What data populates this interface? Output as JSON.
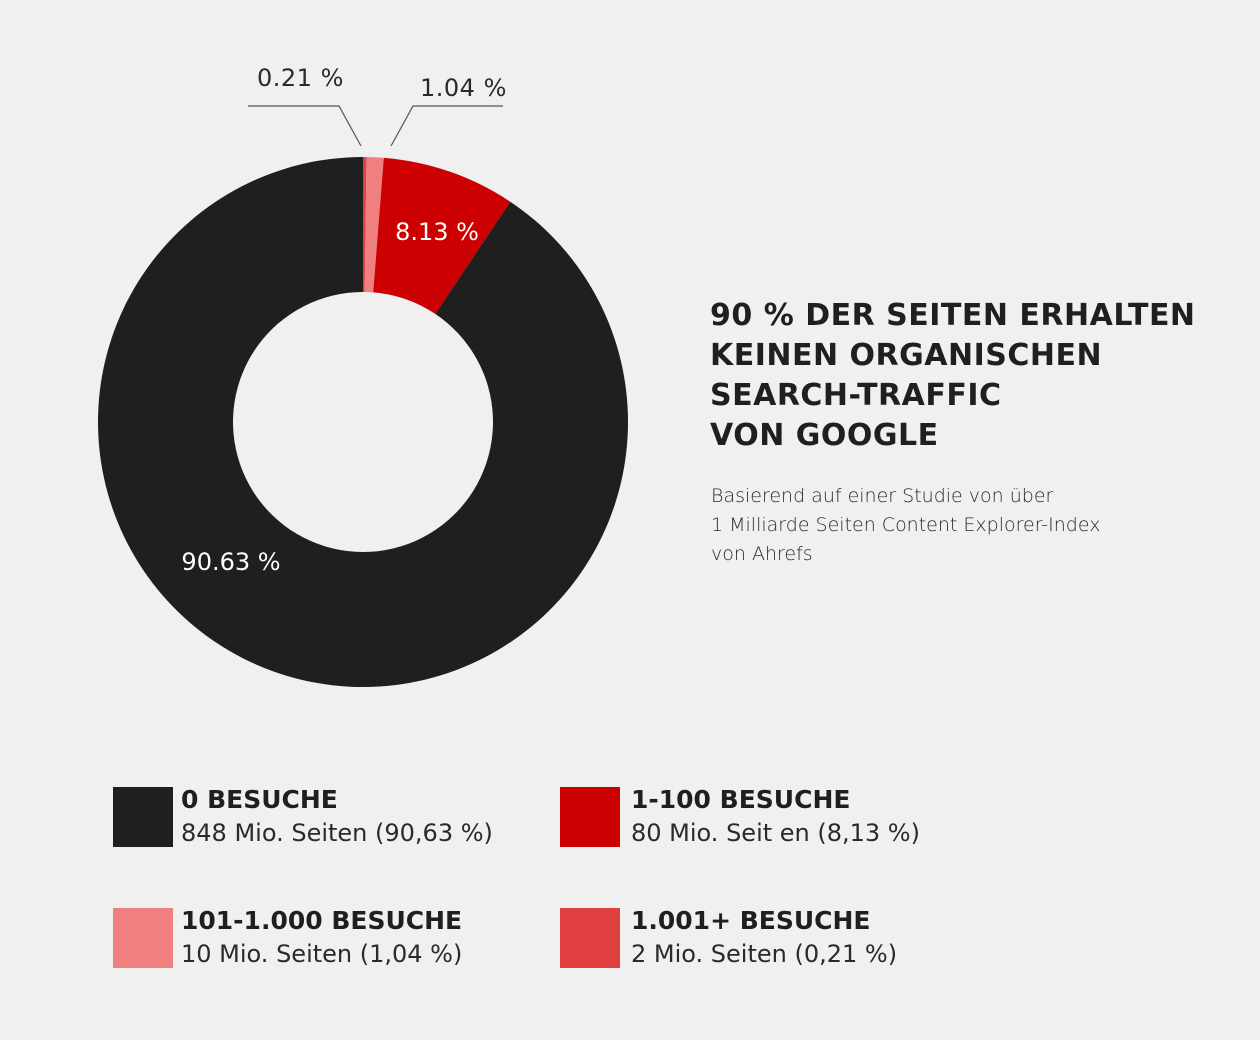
{
  "chart_data": {
    "type": "pie",
    "variant": "donut",
    "title": "90 % DER SEITEN ERHALTEN KEINEN ORGANISCHEN SEARCH-TRAFFIC VON GOOGLE",
    "subtitle": "Basierend auf einer Studie von über 1 Milliarde Seiten Content Explorer-Index von Ahrefs",
    "start_angle_deg": 0,
    "direction": "clockwise",
    "slices": [
      {
        "key": "1001plus",
        "label": "1.001+ BESUCHE",
        "value": 0.21,
        "display": "0.21 %",
        "color": "#e04040",
        "label_position": "outside-left"
      },
      {
        "key": "101to1000",
        "label": "101-1.000 BESUCHE",
        "value": 1.04,
        "display": "1.04 %",
        "color": "#f08080",
        "label_position": "outside-right"
      },
      {
        "key": "1to100",
        "label": "1-100 BESUCHE",
        "value": 8.13,
        "display": "8.13 %",
        "color": "#cc0000",
        "label_position": "inside"
      },
      {
        "key": "zero",
        "label": "0 BESUCHE",
        "value": 90.63,
        "display": "90.63 %",
        "color": "#1f1f1f",
        "label_position": "inside"
      }
    ],
    "legend": [
      {
        "key": "zero",
        "title": "0 BESUCHE",
        "desc": "848 Mio. Seiten (90,63 %)",
        "pages_millions": 848,
        "percent": 90.63,
        "color": "#1f1f1f"
      },
      {
        "key": "1to100",
        "title": "1-100 BESUCHE",
        "desc": "80 Mio. Seit  en (8,13 %)",
        "pages_millions": 80,
        "percent": 8.13,
        "color": "#cc0000"
      },
      {
        "key": "101to1000",
        "title": "101-1.000 BESUCHE",
        "desc": "10 Mio. Seiten (1,04 %)",
        "pages_millions": 10,
        "percent": 1.04,
        "color": "#f08080"
      },
      {
        "key": "1001plus",
        "title": "1.001+ BESUCHE",
        "desc": "2 Mio. Seiten (0,21 %)",
        "pages_millions": 2,
        "percent": 0.21,
        "color": "#e04040"
      }
    ],
    "legend_placement": "bottom"
  },
  "headline_lines": [
    "90 % DER SEITEN ERHALTEN",
    "KEINEN ORGANISCHEN",
    "SEARCH-TRAFFIC",
    "VON GOOGLE"
  ],
  "subtitle_lines": [
    "Basierend auf einer Studie von über",
    "1 Milliarde Seiten Content Explorer-Index",
    "von Ahrefs"
  ],
  "colors": {
    "background": "#f0f0f0",
    "text": "#1f1f1f",
    "inner_label": "#ffffff",
    "leader_line": "#555555"
  }
}
